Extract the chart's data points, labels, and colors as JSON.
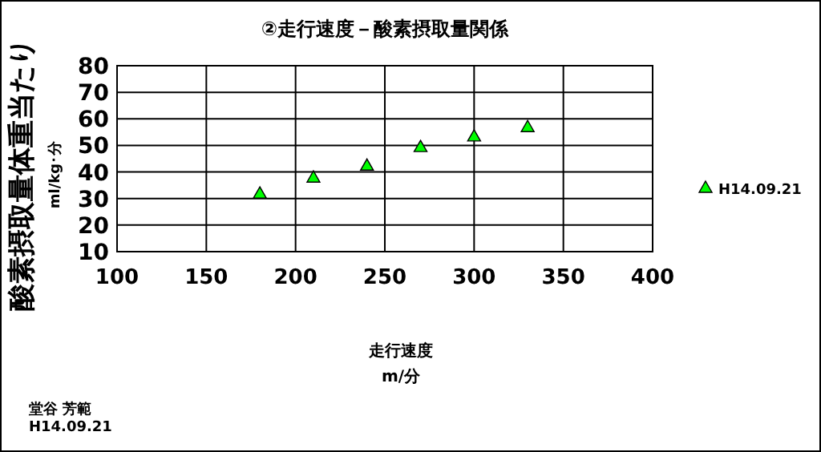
{
  "chart_data": {
    "type": "scatter",
    "title": "②走行速度－酸素摂取量関係",
    "xlabel": "走行速度\nm/分",
    "ylabel": "酸素摂取量体重当たり\nml/kg･分",
    "annotations": [
      "堂谷 芳範",
      "H14.09.21"
    ],
    "series": [
      {
        "name": "H14.09.21",
        "color": "#00ff00",
        "x": [
          180,
          210,
          240,
          270,
          300,
          330
        ],
        "values": [
          32,
          38,
          42.5,
          49.5,
          53.5,
          57
        ]
      }
    ],
    "xlim": [
      100,
      400
    ],
    "xticks": [
      100,
      150,
      200,
      250,
      300,
      350,
      400
    ],
    "ylim": [
      10,
      80
    ],
    "yticks": [
      10,
      20,
      30,
      40,
      50,
      60,
      70,
      80
    ],
    "grid": true,
    "legend": "right",
    "marker": "triangle"
  }
}
